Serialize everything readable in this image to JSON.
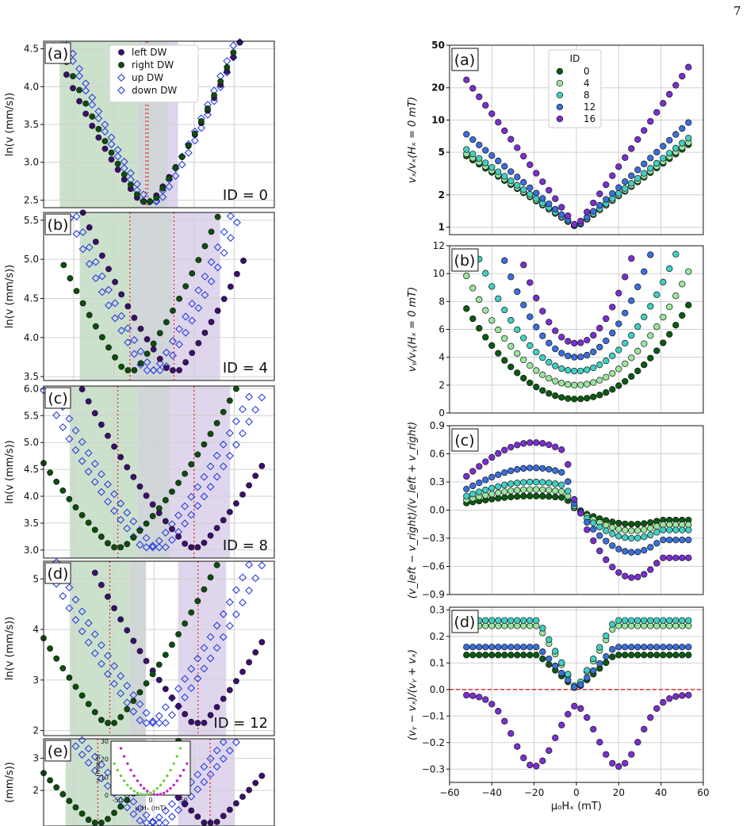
{
  "page_number": "7",
  "left_axis_label": "ln(v (mm/s))",
  "left_legend": [
    "left DW",
    "right DW",
    "up DW",
    "down DW"
  ],
  "colors": {
    "left": "#3b0f6e",
    "right": "#0d4d0d",
    "updown": "#2a3fe0",
    "green_band": "#8fbc8f",
    "purple_band": "#b9a3d6",
    "gray_band": "#9aa3a9",
    "dotted": "#e02020",
    "id0": "#0a5a12",
    "id4": "#9ae6a0",
    "id8": "#3fd0c4",
    "id12": "#3a6fdc",
    "id16": "#7a2fd1"
  },
  "chart_data": [
    {
      "type": "scatter",
      "panel": "(a)",
      "label": "ID = 0",
      "ylabel": "ln(v (mm/s))",
      "ylim": [
        2.4,
        4.6
      ],
      "yticks": [
        "2.5",
        "3.0",
        "3.5",
        "4.0",
        "4.5"
      ],
      "left_vmin": -4,
      "right_vmin": -3,
      "up_vmin": -2,
      "down_vmin": 0,
      "vmin": 2.48,
      "slope_l": 0.033,
      "slope_r": 0.036,
      "slope_ud": 0.04,
      "x_range": [
        -50,
        55
      ]
    },
    {
      "type": "scatter",
      "panel": "(b)",
      "label": "ID = 4",
      "ylabel": "ln(v (mm/s))",
      "ylim": [
        3.45,
        5.6
      ],
      "yticks": [
        "3.5",
        "4.0",
        "4.5",
        "5.0",
        "5.5"
      ],
      "left_vmin": 10,
      "right_vmin": -12,
      "up_vmin": -2,
      "down_vmin": 2,
      "vmin": 3.58,
      "slope_l": 0.033,
      "slope_r": 0.034,
      "slope_ud": 0.04,
      "x_range": [
        -45,
        45
      ]
    },
    {
      "type": "scatter",
      "panel": "(c)",
      "label": "ID = 8",
      "ylabel": "ln(v (mm/s))",
      "ylim": [
        2.85,
        6.05
      ],
      "yticks": [
        "3.0",
        "3.5",
        "4.0",
        "4.5",
        "5.0",
        "5.5",
        "6.0"
      ],
      "left_vmin": 20,
      "right_vmin": -18,
      "up_vmin": -3,
      "down_vmin": 3,
      "vmin": 3.05,
      "slope_l": 0.038,
      "slope_r": 0.034,
      "slope_ud": 0.043,
      "x_range": [
        -55,
        55
      ]
    },
    {
      "type": "scatter",
      "panel": "(d)",
      "label": "ID = 12",
      "ylabel": "ln(v (mm/s))",
      "ylim": [
        1.9,
        5.35
      ],
      "yticks": [
        "2",
        "3",
        "4",
        "5"
      ],
      "left_vmin": 22,
      "right_vmin": -22,
      "up_vmin": -3,
      "down_vmin": 3,
      "vmin": 2.15,
      "slope_l": 0.045,
      "slope_r": 0.045,
      "slope_ud": 0.05,
      "x_range": [
        -55,
        55
      ]
    },
    {
      "type": "scatter",
      "panel": "(e)",
      "label": "",
      "ylabel": "(mm/s))",
      "ylim": [
        0.9,
        3.6
      ],
      "yticks": [
        "2",
        "3"
      ],
      "left_vmin": 28,
      "right_vmin": -28,
      "up_vmin": -3,
      "down_vmin": 3,
      "vmin": 1.0,
      "slope_l": 0.055,
      "slope_r": 0.055,
      "slope_ud": 0.06,
      "x_range": [
        -55,
        55
      ],
      "inset": {
        "ylabel": "v (mm/s)",
        "xlabel": "μ₀Hₓ (mT)",
        "xticks": [
          "-50",
          "0",
          "50"
        ],
        "yticks": [
          "0",
          "10",
          "20",
          "30"
        ]
      }
    },
    {
      "type": "scatter",
      "panel": "(a)",
      "ylabel": "vₓ/vₓ(Hₓ = 0 mT)",
      "scale": "log",
      "ylim": [
        0.85,
        50
      ],
      "yticks": [
        "1",
        "2",
        "5",
        "10",
        "20",
        "50"
      ],
      "legend_title": "ID",
      "legend": [
        "0",
        "4",
        "8",
        "12",
        "16"
      ],
      "series": [
        {
          "name": "0",
          "k": 0.035
        },
        {
          "name": "4",
          "k": 0.036
        },
        {
          "name": "8",
          "k": 0.038
        },
        {
          "name": "12",
          "k": 0.045
        },
        {
          "name": "16",
          "k": 0.07
        }
      ]
    },
    {
      "type": "scatter",
      "panel": "(b)",
      "ylabel": "vᵧ/vᵧ(Hₓ = 0 mT)",
      "ylim": [
        0,
        12
      ],
      "yticks": [
        "0",
        "2",
        "4",
        "6",
        "8",
        "10",
        "12"
      ],
      "series": [
        {
          "name": "0",
          "base": 1.0,
          "a": 0.0024
        },
        {
          "name": "4",
          "base": 2.0,
          "a": 0.0029
        },
        {
          "name": "8",
          "base": 3.0,
          "a": 0.0038
        },
        {
          "name": "12",
          "base": 4.0,
          "a": 0.006
        },
        {
          "name": "16",
          "base": 5.0,
          "a": 0.009
        }
      ]
    },
    {
      "type": "scatter",
      "panel": "(c)",
      "ylabel": "(v_left − v_right)/(v_left + v_right)",
      "ylim": [
        -0.9,
        0.9
      ],
      "yticks": [
        "−0.9",
        "−0.6",
        "−0.3",
        "0.0",
        "0.3",
        "0.6",
        "0.9"
      ],
      "series": [
        {
          "name": "0",
          "amp": 0.15
        },
        {
          "name": "4",
          "amp": 0.22
        },
        {
          "name": "8",
          "amp": 0.3
        },
        {
          "name": "12",
          "amp": 0.45
        },
        {
          "name": "16",
          "amp": 0.72
        }
      ]
    },
    {
      "type": "scatter",
      "panel": "(d)",
      "ylabel": "(vᵧ − vₓ)/(vᵧ + vₓ)",
      "ylim": [
        -0.35,
        0.31
      ],
      "yticks": [
        "−0.3",
        "−0.2",
        "−0.1",
        "0.0",
        "0.1",
        "0.2",
        "0.3"
      ],
      "xlabel": "μ₀Hₓ (mT)",
      "xticks": [
        "−60",
        "−40",
        "−20",
        "0",
        "20",
        "40",
        "60"
      ],
      "xlim": [
        -60,
        60
      ],
      "series": [
        {
          "name": "0",
          "plateau": 0.13
        },
        {
          "name": "4",
          "plateau": 0.24
        },
        {
          "name": "8",
          "plateau": 0.26
        },
        {
          "name": "12",
          "plateau": 0.16
        },
        {
          "name": "16",
          "plateau": -0.27
        }
      ]
    }
  ]
}
